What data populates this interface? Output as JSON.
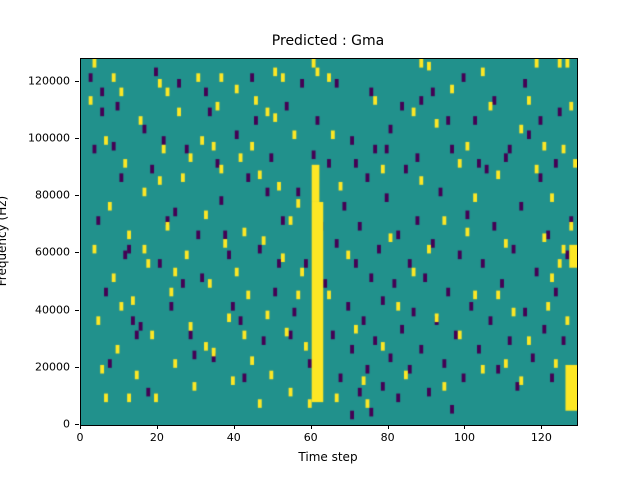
{
  "chart_data": {
    "type": "heatmap",
    "title": "Predicted : Gma",
    "xlabel": "Time step",
    "ylabel": "Frequency (Hz)",
    "x_range": [
      0,
      129
    ],
    "y_range": [
      0,
      128000
    ],
    "x_ticks": [
      0,
      20,
      40,
      60,
      80,
      100,
      120
    ],
    "y_ticks": [
      0,
      20000,
      40000,
      60000,
      80000,
      100000,
      120000
    ],
    "grid_cols": 129,
    "grid_rows": 128,
    "cell_y_unit": 1000,
    "point_row_span": 3,
    "colors": {
      "background": "#21918c",
      "low": "#440154",
      "high": "#fde725"
    },
    "legend": "none",
    "grid": "off",
    "bands": [
      {
        "c0": 60,
        "c1": 62,
        "r0": 8,
        "r1": 77,
        "v": "high"
      },
      {
        "c0": 60,
        "c1": 61,
        "r0": 78,
        "r1": 90,
        "v": "high"
      },
      {
        "c0": 126,
        "c1": 128,
        "r0": 5,
        "r1": 20,
        "v": "high"
      },
      {
        "c0": 127,
        "c1": 128,
        "r0": 55,
        "r1": 62,
        "v": "high"
      }
    ],
    "points_low": [
      [
        5,
        115
      ],
      [
        5,
        108
      ],
      [
        8,
        96
      ],
      [
        12,
        60
      ],
      [
        13,
        35
      ],
      [
        14,
        30
      ],
      [
        16,
        102
      ],
      [
        18,
        88
      ],
      [
        20,
        55
      ],
      [
        22,
        70
      ],
      [
        23,
        40
      ],
      [
        25,
        118
      ],
      [
        27,
        95
      ],
      [
        28,
        30
      ],
      [
        30,
        65
      ],
      [
        31,
        50
      ],
      [
        33,
        108
      ],
      [
        34,
        22
      ],
      [
        36,
        77
      ],
      [
        38,
        58
      ],
      [
        40,
        100
      ],
      [
        41,
        35
      ],
      [
        43,
        85
      ],
      [
        44,
        120
      ],
      [
        46,
        60
      ],
      [
        47,
        28
      ],
      [
        49,
        92
      ],
      [
        50,
        45
      ],
      [
        52,
        70
      ],
      [
        53,
        110
      ],
      [
        55,
        38
      ],
      [
        56,
        80
      ],
      [
        58,
        55
      ],
      [
        59,
        20
      ],
      [
        61,
        105
      ],
      [
        63,
        48
      ],
      [
        64,
        90
      ],
      [
        65,
        30
      ],
      [
        66,
        62
      ],
      [
        67,
        15
      ],
      [
        68,
        75
      ],
      [
        69,
        40
      ],
      [
        70,
        98
      ],
      [
        70,
        25
      ],
      [
        71,
        55
      ],
      [
        72,
        10
      ],
      [
        72,
        68
      ],
      [
        73,
        35
      ],
      [
        74,
        85
      ],
      [
        74,
        18
      ],
      [
        75,
        50
      ],
      [
        76,
        28
      ],
      [
        76,
        95
      ],
      [
        77,
        60
      ],
      [
        78,
        12
      ],
      [
        78,
        42
      ],
      [
        79,
        78
      ],
      [
        80,
        22
      ],
      [
        80,
        102
      ],
      [
        81,
        48
      ],
      [
        82,
        8
      ],
      [
        82,
        65
      ],
      [
        83,
        32
      ],
      [
        84,
        88
      ],
      [
        85,
        18
      ],
      [
        85,
        55
      ],
      [
        86,
        38
      ],
      [
        87,
        70
      ],
      [
        88,
        25
      ],
      [
        88,
        112
      ],
      [
        89,
        50
      ],
      [
        90,
        10
      ],
      [
        91,
        62
      ],
      [
        92,
        35
      ],
      [
        93,
        80
      ],
      [
        94,
        20
      ],
      [
        95,
        45
      ],
      [
        96,
        95
      ],
      [
        97,
        30
      ],
      [
        98,
        58
      ],
      [
        99,
        15
      ],
      [
        100,
        72
      ],
      [
        101,
        40
      ],
      [
        102,
        105
      ],
      [
        103,
        25
      ],
      [
        104,
        55
      ],
      [
        105,
        88
      ],
      [
        106,
        35
      ],
      [
        107,
        68
      ],
      [
        108,
        18
      ],
      [
        109,
        48
      ],
      [
        110,
        92
      ],
      [
        111,
        28
      ],
      [
        112,
        60
      ],
      [
        113,
        12
      ],
      [
        114,
        75
      ],
      [
        115,
        38
      ],
      [
        116,
        100
      ],
      [
        117,
        22
      ],
      [
        118,
        52
      ],
      [
        119,
        85
      ],
      [
        120,
        32
      ],
      [
        121,
        65
      ],
      [
        122,
        15
      ],
      [
        123,
        45
      ],
      [
        124,
        108
      ],
      [
        125,
        28
      ],
      [
        126,
        58
      ],
      [
        2,
        120
      ],
      [
        3,
        95
      ],
      [
        4,
        70
      ],
      [
        6,
        45
      ],
      [
        7,
        20
      ],
      [
        9,
        110
      ],
      [
        10,
        85
      ],
      [
        11,
        58
      ],
      [
        15,
        33
      ],
      [
        17,
        10
      ],
      [
        19,
        122
      ],
      [
        21,
        98
      ],
      [
        24,
        73
      ],
      [
        26,
        48
      ],
      [
        29,
        23
      ],
      [
        32,
        115
      ],
      [
        35,
        90
      ],
      [
        37,
        65
      ],
      [
        39,
        40
      ],
      [
        42,
        15
      ],
      [
        45,
        105
      ],
      [
        48,
        80
      ],
      [
        51,
        55
      ],
      [
        54,
        30
      ],
      [
        57,
        118
      ],
      [
        60,
        93
      ],
      [
        62,
        68
      ],
      [
        66,
        118
      ],
      [
        71,
        90
      ],
      [
        75,
        115
      ],
      [
        79,
        95
      ],
      [
        83,
        110
      ],
      [
        87,
        92
      ],
      [
        91,
        115
      ],
      [
        95,
        105
      ],
      [
        99,
        120
      ],
      [
        103,
        90
      ],
      [
        107,
        112
      ],
      [
        111,
        95
      ],
      [
        115,
        118
      ],
      [
        119,
        105
      ],
      [
        123,
        90
      ],
      [
        127,
        70
      ],
      [
        70,
        2
      ],
      [
        75,
        3
      ],
      [
        96,
        4
      ]
    ],
    "points_high": [
      [
        2,
        112
      ],
      [
        3,
        60
      ],
      [
        4,
        35
      ],
      [
        5,
        18
      ],
      [
        6,
        98
      ],
      [
        7,
        75
      ],
      [
        8,
        50
      ],
      [
        9,
        25
      ],
      [
        10,
        115
      ],
      [
        11,
        90
      ],
      [
        12,
        65
      ],
      [
        13,
        42
      ],
      [
        14,
        16
      ],
      [
        15,
        105
      ],
      [
        16,
        80
      ],
      [
        17,
        55
      ],
      [
        18,
        30
      ],
      [
        19,
        8
      ],
      [
        20,
        118
      ],
      [
        21,
        95
      ],
      [
        22,
        68
      ],
      [
        23,
        45
      ],
      [
        24,
        20
      ],
      [
        25,
        108
      ],
      [
        26,
        85
      ],
      [
        27,
        58
      ],
      [
        28,
        33
      ],
      [
        29,
        12
      ],
      [
        30,
        120
      ],
      [
        31,
        98
      ],
      [
        32,
        72
      ],
      [
        33,
        48
      ],
      [
        34,
        24
      ],
      [
        35,
        110
      ],
      [
        36,
        88
      ],
      [
        37,
        62
      ],
      [
        38,
        36
      ],
      [
        39,
        14
      ],
      [
        40,
        116
      ],
      [
        41,
        92
      ],
      [
        42,
        66
      ],
      [
        43,
        44
      ],
      [
        44,
        21
      ],
      [
        45,
        112
      ],
      [
        46,
        86
      ],
      [
        47,
        63
      ],
      [
        48,
        37
      ],
      [
        49,
        16
      ],
      [
        50,
        106
      ],
      [
        51,
        82
      ],
      [
        52,
        57
      ],
      [
        53,
        31
      ],
      [
        54,
        10
      ],
      [
        55,
        100
      ],
      [
        56,
        76
      ],
      [
        57,
        52
      ],
      [
        58,
        26
      ],
      [
        59,
        6
      ],
      [
        64,
        120
      ],
      [
        65,
        100
      ],
      [
        67,
        82
      ],
      [
        69,
        58
      ],
      [
        71,
        32
      ],
      [
        73,
        14
      ],
      [
        76,
        112
      ],
      [
        78,
        88
      ],
      [
        80,
        64
      ],
      [
        82,
        40
      ],
      [
        84,
        16
      ],
      [
        86,
        108
      ],
      [
        88,
        84
      ],
      [
        90,
        60
      ],
      [
        92,
        36
      ],
      [
        94,
        12
      ],
      [
        96,
        116
      ],
      [
        98,
        90
      ],
      [
        100,
        66
      ],
      [
        102,
        44
      ],
      [
        104,
        18
      ],
      [
        106,
        110
      ],
      [
        108,
        86
      ],
      [
        110,
        62
      ],
      [
        112,
        38
      ],
      [
        114,
        14
      ],
      [
        116,
        112
      ],
      [
        118,
        88
      ],
      [
        120,
        64
      ],
      [
        121,
        40
      ],
      [
        122,
        78
      ],
      [
        123,
        20
      ],
      [
        124,
        55
      ],
      [
        125,
        95
      ],
      [
        126,
        35
      ],
      [
        127,
        68
      ],
      [
        128,
        15
      ],
      [
        125,
        60
      ],
      [
        127,
        110
      ],
      [
        128,
        90
      ],
      [
        126,
        125
      ],
      [
        124,
        125
      ],
      [
        60,
        125
      ],
      [
        61,
        122
      ],
      [
        3,
        125
      ],
      [
        10,
        40
      ],
      [
        8,
        120
      ],
      [
        22,
        115
      ],
      [
        36,
        120
      ],
      [
        50,
        122
      ],
      [
        88,
        125
      ],
      [
        104,
        122
      ],
      [
        118,
        125
      ],
      [
        6,
        8
      ],
      [
        12,
        8
      ],
      [
        44,
        96
      ],
      [
        48,
        108
      ],
      [
        52,
        120
      ],
      [
        34,
        96
      ],
      [
        28,
        92
      ],
      [
        20,
        84
      ],
      [
        16,
        60
      ],
      [
        24,
        52
      ],
      [
        32,
        26
      ],
      [
        40,
        52
      ],
      [
        56,
        44
      ],
      [
        64,
        44
      ],
      [
        92,
        104
      ],
      [
        100,
        96
      ],
      [
        108,
        44
      ],
      [
        116,
        28
      ],
      [
        120,
        96
      ],
      [
        122,
        50
      ],
      [
        114,
        102
      ],
      [
        110,
        20
      ],
      [
        102,
        78
      ],
      [
        94,
        70
      ],
      [
        86,
        52
      ],
      [
        78,
        26
      ],
      [
        66,
        8
      ],
      [
        74,
        6
      ],
      [
        90,
        124
      ],
      [
        98,
        30
      ],
      [
        46,
        6
      ],
      [
        54,
        70
      ],
      [
        42,
        30
      ]
    ]
  }
}
